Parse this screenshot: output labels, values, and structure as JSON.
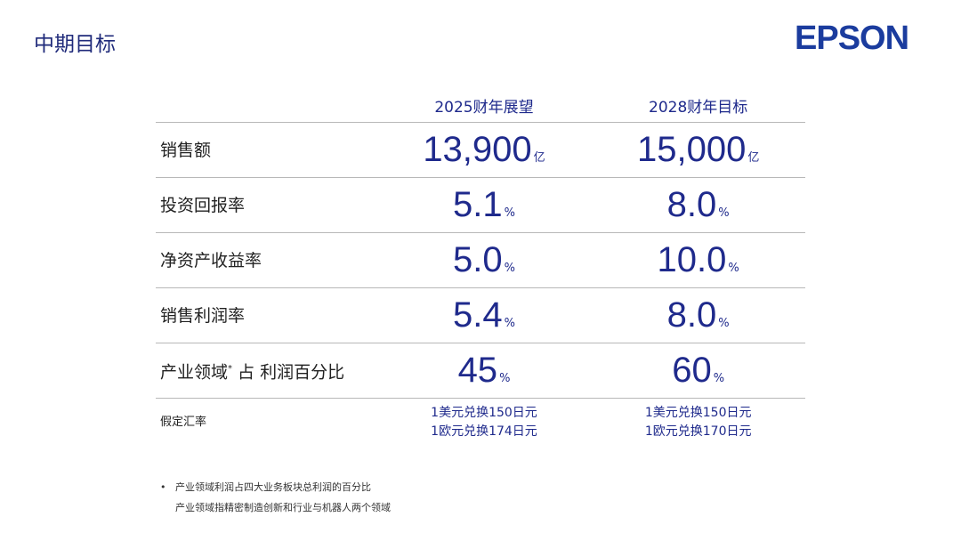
{
  "header": {
    "title": "中期目标",
    "logo": "EPSON"
  },
  "table": {
    "columns": [
      "2025财年展望",
      "2028财年目标"
    ],
    "rows": [
      {
        "label": "销售额",
        "cells": [
          {
            "value": "13,900",
            "unit": "亿"
          },
          {
            "value": "15,000",
            "unit": "亿"
          }
        ]
      },
      {
        "label": "投资回报率",
        "cells": [
          {
            "value": "5.1",
            "unit": "%"
          },
          {
            "value": "8.0",
            "unit": "%"
          }
        ]
      },
      {
        "label": "净资产收益率",
        "cells": [
          {
            "value": "5.0",
            "unit": "%"
          },
          {
            "value": "10.0",
            "unit": "%"
          }
        ]
      },
      {
        "label": "销售利润率",
        "cells": [
          {
            "value": "5.4",
            "unit": "%"
          },
          {
            "value": "8.0",
            "unit": "%"
          }
        ]
      },
      {
        "label": "产业领域",
        "mark": "*",
        "label_rest": " 占 利润百分比",
        "cells": [
          {
            "value": "45",
            "unit": "%"
          },
          {
            "value": "60",
            "unit": "%"
          }
        ]
      }
    ],
    "rate_row": {
      "label": "假定汇率",
      "cells": [
        [
          "1美元兑换150日元",
          "1欧元兑换174日元"
        ],
        [
          "1美元兑换150日元",
          "1欧元兑换170日元"
        ]
      ]
    }
  },
  "notes": [
    "产业领域利润占四大业务板块总利润的百分比",
    "产业领域指精密制造创新和行业与机器人两个领域"
  ]
}
